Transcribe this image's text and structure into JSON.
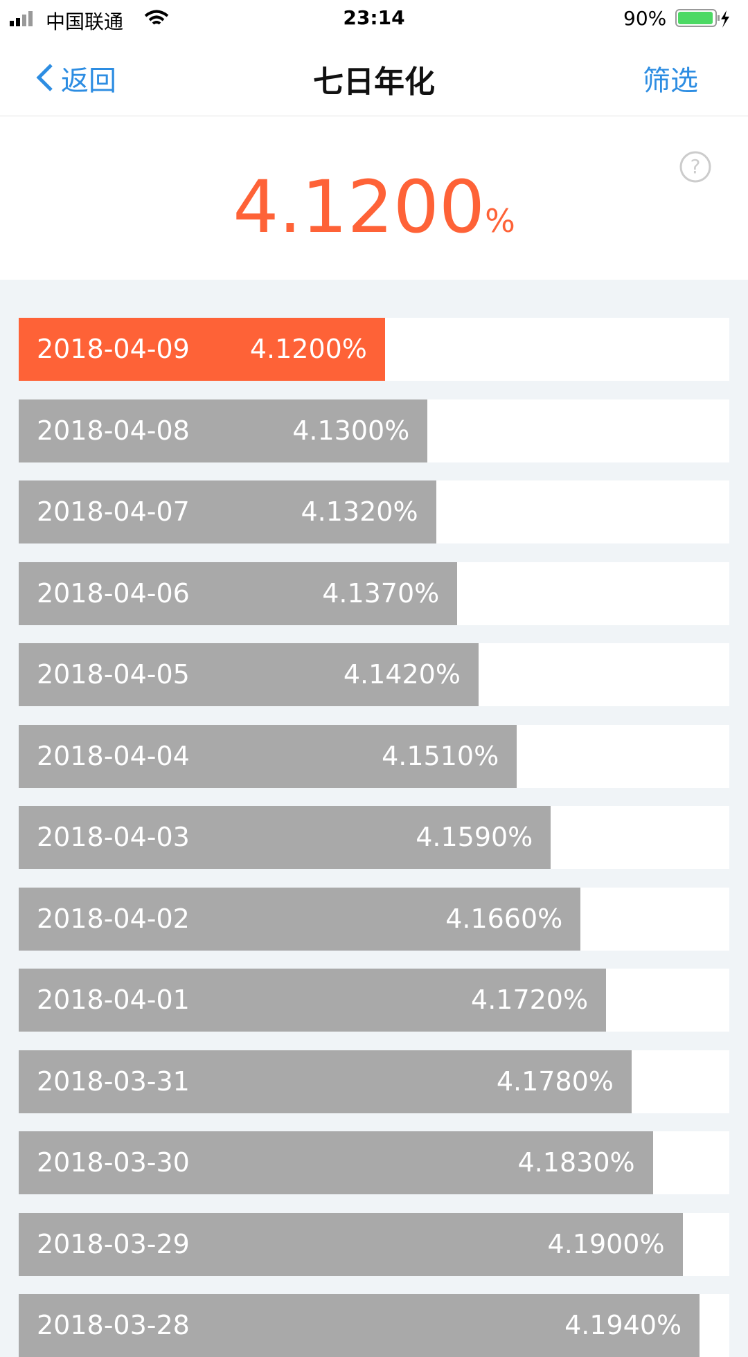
{
  "status_bar": {
    "carrier": "中国联通",
    "time": "23:14",
    "battery": "90%"
  },
  "nav": {
    "back": "返回",
    "title": "七日年化",
    "filter": "筛选"
  },
  "summary": {
    "value": "4.1200",
    "unit": "%"
  },
  "chart_data": {
    "type": "bar",
    "orientation": "horizontal",
    "categories": [
      "2018-04-09",
      "2018-04-08",
      "2018-04-07",
      "2018-04-06",
      "2018-04-05",
      "2018-04-04",
      "2018-04-03",
      "2018-04-02",
      "2018-04-01",
      "2018-03-31",
      "2018-03-30",
      "2018-03-29",
      "2018-03-28"
    ],
    "values": [
      4.12,
      4.13,
      4.132,
      4.137,
      4.142,
      4.151,
      4.159,
      4.166,
      4.172,
      4.178,
      4.183,
      4.19,
      4.194
    ],
    "value_labels": [
      "4.1200%",
      "4.1300%",
      "4.1320%",
      "4.1370%",
      "4.1420%",
      "4.1510%",
      "4.1590%",
      "4.1660%",
      "4.1720%",
      "4.1780%",
      "4.1830%",
      "4.1900%",
      "4.1940%"
    ],
    "color": "#a9a9a9",
    "highlight_color": "#fe6237"
  }
}
